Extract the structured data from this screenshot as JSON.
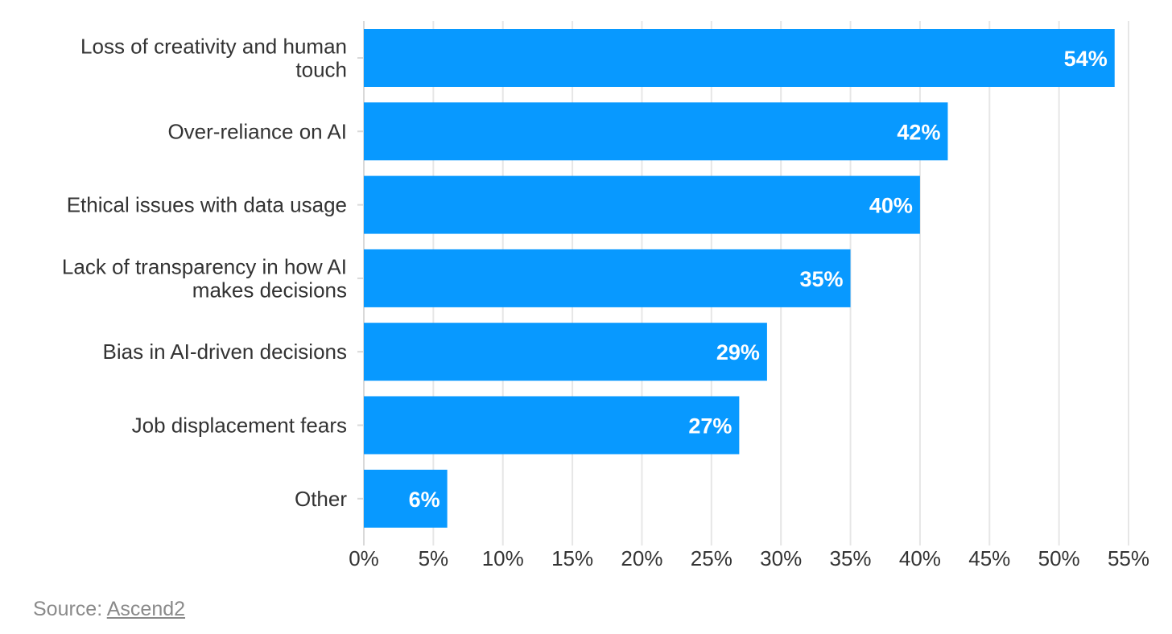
{
  "chart_data": {
    "type": "bar",
    "orientation": "horizontal",
    "categories": [
      "Loss of creativity and human touch",
      "Over-reliance on AI",
      "Ethical issues with data usage",
      "Lack of transparency in how AI makes decisions",
      "Bias in AI-driven decisions",
      "Job displacement fears",
      "Other"
    ],
    "category_lines": [
      [
        "Loss of creativity and human",
        "touch"
      ],
      [
        "Over-reliance on AI"
      ],
      [
        "Ethical issues with data usage"
      ],
      [
        "Lack of transparency in how AI",
        "makes decisions"
      ],
      [
        "Bias in AI-driven decisions"
      ],
      [
        "Job displacement fears"
      ],
      [
        "Other"
      ]
    ],
    "values": [
      54,
      42,
      40,
      35,
      29,
      27,
      6
    ],
    "data_labels": [
      "54%",
      "42%",
      "40%",
      "35%",
      "29%",
      "27%",
      "6%"
    ],
    "xlim": [
      0,
      55
    ],
    "x_ticks": [
      0,
      5,
      10,
      15,
      20,
      25,
      30,
      35,
      40,
      45,
      50,
      55
    ],
    "x_tick_labels": [
      "0%",
      "5%",
      "10%",
      "15%",
      "20%",
      "25%",
      "30%",
      "35%",
      "40%",
      "45%",
      "50%",
      "55%"
    ],
    "bar_color": "#0899FF",
    "grid": true,
    "legend": "none",
    "title": "",
    "xlabel": "",
    "ylabel": ""
  },
  "source": {
    "prefix": "Source: ",
    "link_text": "Ascend2"
  }
}
